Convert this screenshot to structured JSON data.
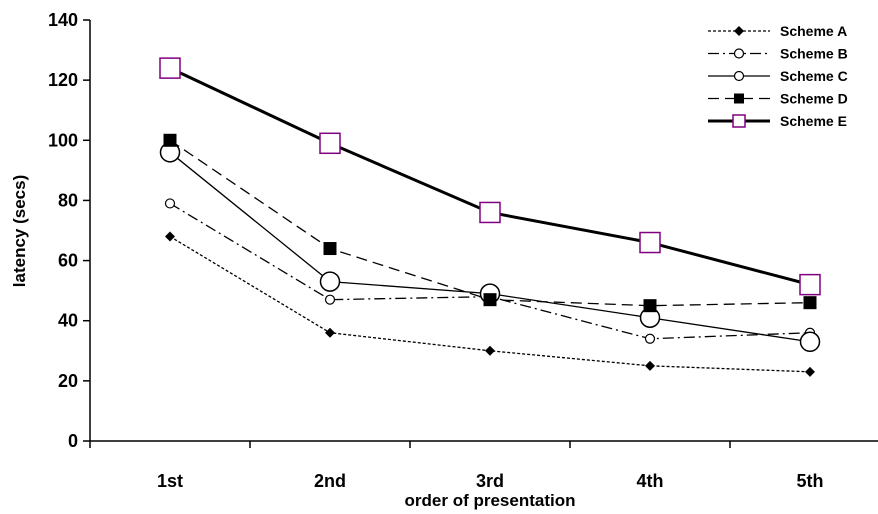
{
  "chart_data": {
    "type": "line",
    "title": "",
    "xlabel": "order of presentation",
    "ylabel": "latency (secs)",
    "categories": [
      "1st",
      "2nd",
      "3rd",
      "4th",
      "5th"
    ],
    "ylim": [
      0,
      140
    ],
    "yticks": [
      0,
      20,
      40,
      60,
      80,
      100,
      120,
      140
    ],
    "grid": false,
    "legend_position": "top-right",
    "series": [
      {
        "name": "Scheme A",
        "values": [
          68,
          36,
          30,
          25,
          23
        ],
        "marker": "diamond-filled",
        "line": "dotted",
        "color": "#000000"
      },
      {
        "name": "Scheme B",
        "values": [
          79,
          47,
          48,
          34,
          36
        ],
        "marker": "circle-open-small",
        "line": "dash-dot",
        "color": "#000000"
      },
      {
        "name": "Scheme C",
        "values": [
          96,
          53,
          49,
          41,
          33
        ],
        "marker": "circle-open-large",
        "line": "solid-thin",
        "color": "#000000"
      },
      {
        "name": "Scheme D",
        "values": [
          100,
          64,
          47,
          45,
          46
        ],
        "marker": "square-filled",
        "line": "dashed",
        "color": "#000000"
      },
      {
        "name": "Scheme E",
        "values": [
          124,
          99,
          76,
          66,
          52
        ],
        "marker": "square-open",
        "line": "solid-thick",
        "color": "#000000",
        "marker_color": "#800080"
      }
    ]
  }
}
